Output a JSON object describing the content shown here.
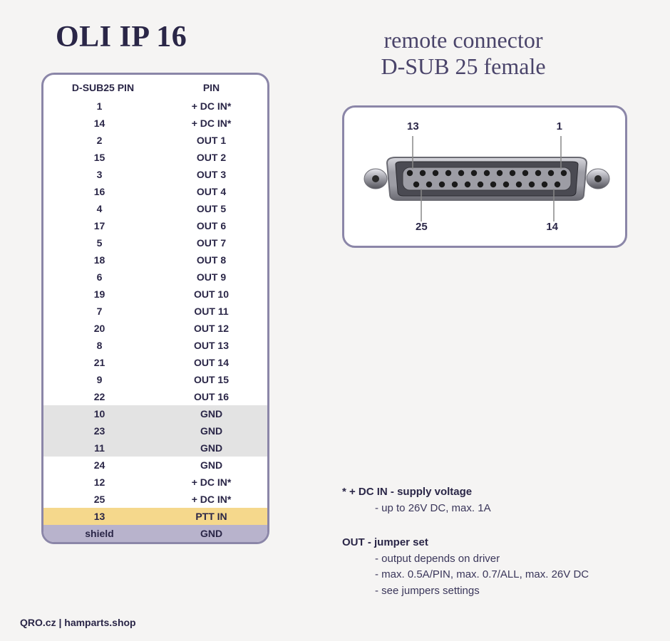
{
  "title": "OLI IP 16",
  "subtitle_line1": "remote connector",
  "subtitle_line2": "D-SUB 25 female",
  "colors": {
    "background": "#f5f4f3",
    "text_dark": "#2a2647",
    "text_mid": "#4a446a",
    "border": "#8b86a8",
    "row_white": "#ffffff",
    "row_gray": "#e3e3e3",
    "row_yellow": "#f5d88c",
    "row_purple": "#b8b3cc",
    "connector_body": "#9d9da5",
    "connector_dark": "#6a6a72",
    "connector_light": "#d8d8de",
    "pin_black": "#1a1a1a"
  },
  "table": {
    "header": {
      "col1": "D-SUB25 PIN",
      "col2": "PIN"
    },
    "rows": [
      {
        "pin": "1",
        "label": "+ DC IN*",
        "bg": "#ffffff"
      },
      {
        "pin": "14",
        "label": "+ DC IN*",
        "bg": "#ffffff"
      },
      {
        "pin": "2",
        "label": "OUT 1",
        "bg": "#ffffff"
      },
      {
        "pin": "15",
        "label": "OUT 2",
        "bg": "#ffffff"
      },
      {
        "pin": "3",
        "label": "OUT 3",
        "bg": "#ffffff"
      },
      {
        "pin": "16",
        "label": "OUT 4",
        "bg": "#ffffff"
      },
      {
        "pin": "4",
        "label": "OUT 5",
        "bg": "#ffffff"
      },
      {
        "pin": "17",
        "label": "OUT 6",
        "bg": "#ffffff"
      },
      {
        "pin": "5",
        "label": "OUT 7",
        "bg": "#ffffff"
      },
      {
        "pin": "18",
        "label": "OUT 8",
        "bg": "#ffffff"
      },
      {
        "pin": "6",
        "label": "OUT 9",
        "bg": "#ffffff"
      },
      {
        "pin": "19",
        "label": "OUT 10",
        "bg": "#ffffff"
      },
      {
        "pin": "7",
        "label": "OUT 11",
        "bg": "#ffffff"
      },
      {
        "pin": "20",
        "label": "OUT 12",
        "bg": "#ffffff"
      },
      {
        "pin": "8",
        "label": "OUT 13",
        "bg": "#ffffff"
      },
      {
        "pin": "21",
        "label": "OUT 14",
        "bg": "#ffffff"
      },
      {
        "pin": "9",
        "label": "OUT 15",
        "bg": "#ffffff"
      },
      {
        "pin": "22",
        "label": "OUT 16",
        "bg": "#ffffff"
      },
      {
        "pin": "10",
        "label": "GND",
        "bg": "#e3e3e3"
      },
      {
        "pin": "23",
        "label": "GND",
        "bg": "#e3e3e3"
      },
      {
        "pin": "11",
        "label": "GND",
        "bg": "#e3e3e3"
      },
      {
        "pin": "24",
        "label": "GND",
        "bg": "#ffffff"
      },
      {
        "pin": "12",
        "label": "+ DC IN*",
        "bg": "#ffffff"
      },
      {
        "pin": "25",
        "label": "+ DC IN*",
        "bg": "#ffffff"
      },
      {
        "pin": "13",
        "label": "PTT IN",
        "bg": "#f5d88c"
      },
      {
        "pin": "shield",
        "label": "GND",
        "bg": "#b8b3cc"
      }
    ]
  },
  "connector": {
    "labels": {
      "top_left": "13",
      "top_right": "1",
      "bottom_left": "25",
      "bottom_right": "14"
    },
    "top_pin_count": 13,
    "bottom_pin_count": 12
  },
  "notes": {
    "n1_head": "* + DC IN - supply voltage",
    "n1_sub1": "- up to 26V DC, max. 1A",
    "n2_head": "OUT - jumper set",
    "n2_sub1": "- output depends on driver",
    "n2_sub2": "- max. 0.5A/PIN, max. 0.7/ALL, max. 26V DC",
    "n2_sub3": "- see jumpers settings"
  },
  "footer": "QRO.cz | hamparts.shop"
}
